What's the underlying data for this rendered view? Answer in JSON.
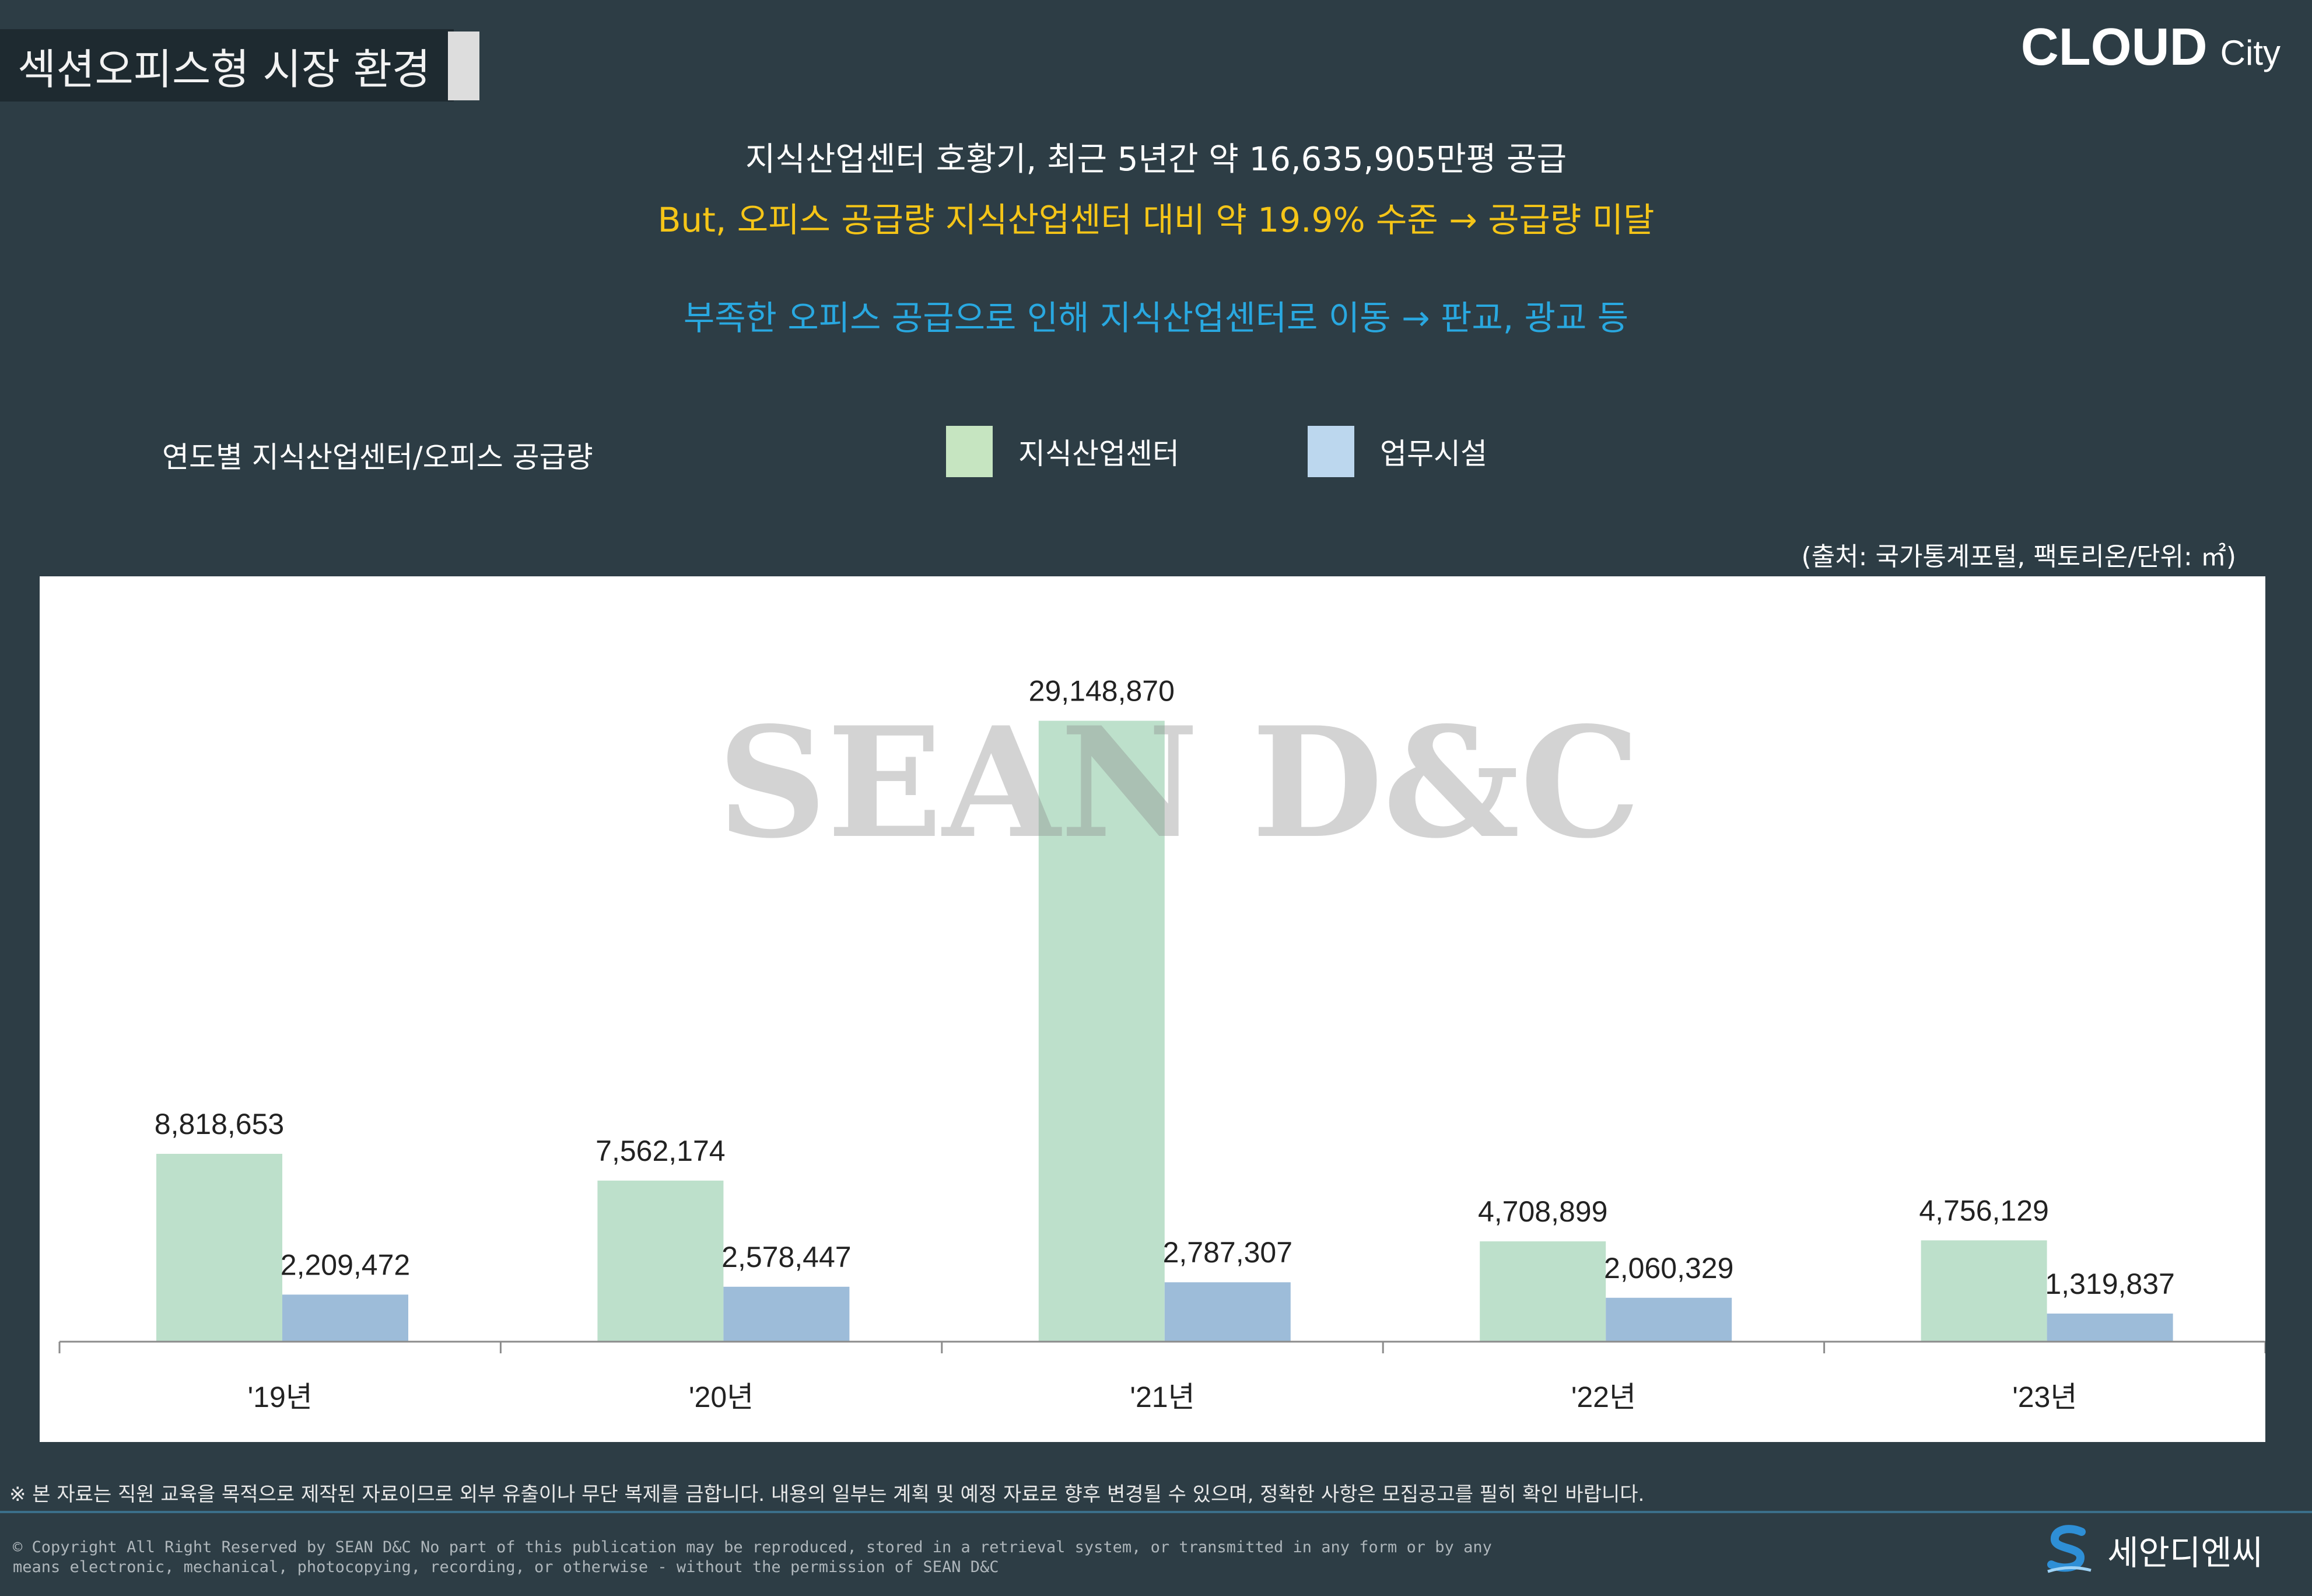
{
  "header": {
    "title": "섹션오피스형 시장 환경",
    "brand_main": "CLOUD",
    "brand_sub": "City"
  },
  "headlines": {
    "line1": "지식산업센터 호황기, 최근 5년간 약 16,635,905만평 공급",
    "line2": "But, 오피스 공급량 지식산업센터 대비 약 19.9% 수준 → 공급량 미달",
    "line3": "부족한 오피스 공급으로 인해 지식산업센터로 이동 → 판교, 광교 등"
  },
  "chart_label": "연도별 지식산업센터/오피스 공급량",
  "source": "(출처: 국가통계포털, 팩토리온/단위: ㎡)",
  "watermark": "SEAN D&C",
  "colors": {
    "series1": "#bde0cb",
    "series2": "#9dbcd9",
    "legend1": "#c6e5c1",
    "legend2": "#bcd7ee",
    "background": "#2d3d45"
  },
  "chart_data": {
    "type": "bar",
    "categories": [
      "'19년",
      "'20년",
      "'21년",
      "'22년",
      "'23년"
    ],
    "series": [
      {
        "name": "지식산업센터",
        "values": [
          8818653,
          7562174,
          29148870,
          4708899,
          4756129
        ]
      },
      {
        "name": "업무시설",
        "values": [
          2209472,
          2578447,
          2787307,
          2060329,
          1319837
        ]
      }
    ],
    "value_labels": [
      [
        "8,818,653",
        "7,562,174",
        "29,148,870",
        "4,708,899",
        "4,756,129"
      ],
      [
        "2,209,472",
        "2,578,447",
        "2,787,307",
        "2,060,329",
        "1,319,837"
      ]
    ],
    "ylim": [
      0,
      31000000
    ],
    "grid": false,
    "legend_position": "top"
  },
  "footer": {
    "disclaimer": "※ 본 자료는 직원 교육을 목적으로 제작된 자료이므로 외부 유출이나 무단 복제를 금합니다. 내용의 일부는 계획 및 예정 자료로 향후 변경될 수 있으며, 정확한 사항은 모집공고를 필히 확인 바랍니다.",
    "copyright_line1": "© Copyright All Right Reserved by SEAN D&C  No part of this publication may be reproduced, stored in a retrieval system, or transmitted in any form or by any",
    "copyright_line2": "means electronic, mechanical, photocopying, recording, or otherwise - without the permission of SEAN D&C",
    "logo_text": "세안디엔씨"
  }
}
